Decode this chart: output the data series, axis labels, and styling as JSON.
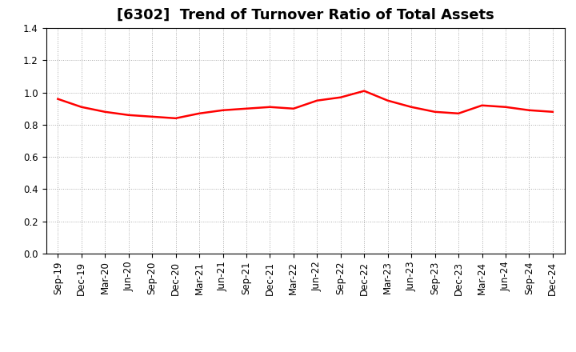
{
  "title": "[6302]  Trend of Turnover Ratio of Total Assets",
  "x_labels": [
    "Sep-19",
    "Dec-19",
    "Mar-20",
    "Jun-20",
    "Sep-20",
    "Dec-20",
    "Mar-21",
    "Jun-21",
    "Sep-21",
    "Dec-21",
    "Mar-22",
    "Jun-22",
    "Sep-22",
    "Dec-22",
    "Mar-23",
    "Jun-23",
    "Sep-23",
    "Dec-23",
    "Mar-24",
    "Jun-24",
    "Sep-24",
    "Dec-24"
  ],
  "y_values": [
    0.96,
    0.91,
    0.88,
    0.86,
    0.85,
    0.84,
    0.87,
    0.89,
    0.9,
    0.91,
    0.9,
    0.95,
    0.97,
    1.01,
    0.95,
    0.91,
    0.88,
    0.87,
    0.92,
    0.91,
    0.89,
    0.88
  ],
  "line_color": "#ff0000",
  "line_width": 1.8,
  "ylim": [
    0.0,
    1.4
  ],
  "yticks": [
    0.0,
    0.2,
    0.4,
    0.6,
    0.8,
    1.0,
    1.2,
    1.4
  ],
  "grid_color": "#aaaaaa",
  "grid_style": "dotted",
  "background_color": "#ffffff",
  "title_fontsize": 13,
  "tick_fontsize": 8.5
}
